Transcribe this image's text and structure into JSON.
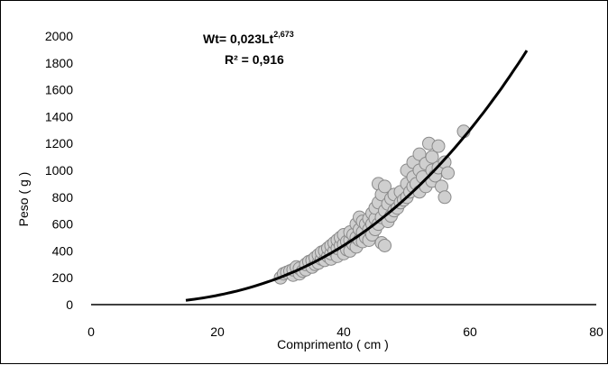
{
  "chart_data": {
    "type": "scatter",
    "title": "",
    "xlabel": "Comprimento ( cm )",
    "ylabel": "Peso ( g )",
    "xlim": [
      0,
      80
    ],
    "ylim": [
      0,
      2000
    ],
    "x_ticks": [
      "0",
      "20",
      "40",
      "60",
      "80"
    ],
    "y_ticks": [
      "0",
      "200",
      "400",
      "600",
      "800",
      "1000",
      "1200",
      "1400",
      "1600",
      "1800",
      "2000"
    ],
    "grid": false,
    "legend": "none",
    "annotations": {
      "equation_main": "Wt= 0,023Lt",
      "equation_exponent": "2,673",
      "r2_label": "R² = 0,916"
    },
    "colors": {
      "points_fill": "#cfcfcf",
      "points_stroke": "#8a8a8a",
      "curve": "#000000",
      "axis": "#000000"
    },
    "series": [
      {
        "kind": "scatter",
        "points": [
          [
            30,
            200
          ],
          [
            30.5,
            230
          ],
          [
            31,
            240
          ],
          [
            31.5,
            250
          ],
          [
            32,
            220
          ],
          [
            32,
            260
          ],
          [
            32.5,
            280
          ],
          [
            33,
            230
          ],
          [
            33,
            270
          ],
          [
            33.5,
            250
          ],
          [
            34,
            260
          ],
          [
            34,
            300
          ],
          [
            34.5,
            320
          ],
          [
            35,
            280
          ],
          [
            35,
            330
          ],
          [
            35.5,
            300
          ],
          [
            35.5,
            350
          ],
          [
            36,
            310
          ],
          [
            36,
            370
          ],
          [
            36.5,
            340
          ],
          [
            36.5,
            390
          ],
          [
            37,
            330
          ],
          [
            37,
            400
          ],
          [
            37.5,
            360
          ],
          [
            37.5,
            420
          ],
          [
            38,
            340
          ],
          [
            38,
            380
          ],
          [
            38,
            440
          ],
          [
            38.5,
            400
          ],
          [
            38.5,
            460
          ],
          [
            39,
            360
          ],
          [
            39,
            420
          ],
          [
            39,
            480
          ],
          [
            39.5,
            440
          ],
          [
            39.5,
            500
          ],
          [
            40,
            380
          ],
          [
            40,
            450
          ],
          [
            40,
            520
          ],
          [
            40.5,
            410
          ],
          [
            40.5,
            470
          ],
          [
            41,
            400
          ],
          [
            41,
            480
          ],
          [
            41,
            540
          ],
          [
            41.5,
            450
          ],
          [
            41.5,
            520
          ],
          [
            42,
            430
          ],
          [
            42,
            500
          ],
          [
            42,
            600
          ],
          [
            42.5,
            480
          ],
          [
            42.5,
            560
          ],
          [
            42.5,
            650
          ],
          [
            43,
            470
          ],
          [
            43,
            540
          ],
          [
            43,
            620
          ],
          [
            43.5,
            500
          ],
          [
            43.5,
            600
          ],
          [
            44,
            480
          ],
          [
            44,
            560
          ],
          [
            44,
            640
          ],
          [
            44.5,
            520
          ],
          [
            44.5,
            600
          ],
          [
            44.5,
            680
          ],
          [
            45,
            560
          ],
          [
            45,
            640
          ],
          [
            45,
            720
          ],
          [
            45.5,
            600
          ],
          [
            45.5,
            760
          ],
          [
            45.5,
            900
          ],
          [
            46,
            460
          ],
          [
            46,
            650
          ],
          [
            46,
            820
          ],
          [
            46.5,
            440
          ],
          [
            46.5,
            700
          ],
          [
            46.5,
            880
          ],
          [
            47,
            620
          ],
          [
            47,
            750
          ],
          [
            47.5,
            660
          ],
          [
            47.5,
            790
          ],
          [
            48,
            700
          ],
          [
            48,
            820
          ],
          [
            48.5,
            720
          ],
          [
            49,
            760
          ],
          [
            49,
            840
          ],
          [
            49.5,
            780
          ],
          [
            50,
            800
          ],
          [
            50,
            900
          ],
          [
            50,
            1000
          ],
          [
            50.5,
            840
          ],
          [
            51,
            880
          ],
          [
            51,
            950
          ],
          [
            51,
            1060
          ],
          [
            51.5,
            900
          ],
          [
            52,
            840
          ],
          [
            52,
            1000
          ],
          [
            52,
            1120
          ],
          [
            52.5,
            950
          ],
          [
            53,
            880
          ],
          [
            53,
            1050
          ],
          [
            53.5,
            1200
          ],
          [
            54,
            920
          ],
          [
            54,
            1000
          ],
          [
            54,
            1100
          ],
          [
            54.5,
            960
          ],
          [
            55,
            1020
          ],
          [
            55,
            1180
          ],
          [
            55.5,
            880
          ],
          [
            56,
            1060
          ],
          [
            56,
            800
          ],
          [
            56.5,
            980
          ],
          [
            59,
            1290
          ]
        ]
      },
      {
        "kind": "power-fit",
        "name": "Wt= 0,023Lt^2,673",
        "a": 0.023,
        "b": 2.673,
        "x_range": [
          15,
          69
        ]
      }
    ]
  }
}
